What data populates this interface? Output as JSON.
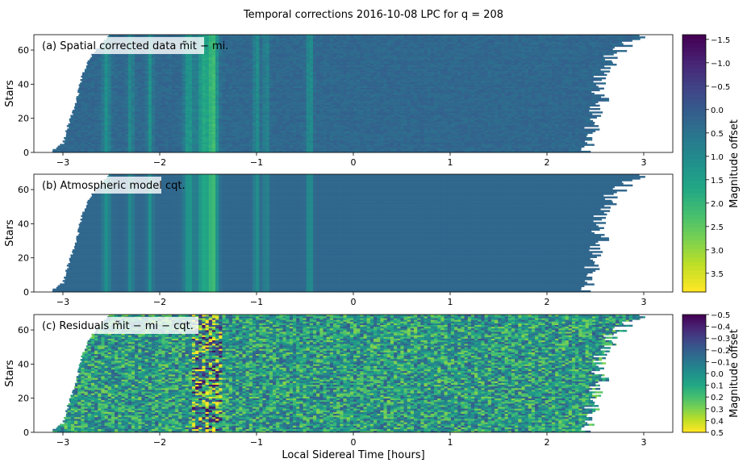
{
  "chart_data": {
    "type": "heatmap",
    "title": "Temporal corrections 2016-10-08 LPC for q = 208",
    "xlabel": "Local Sidereal Time [hours]",
    "xlim": [
      -3.3,
      3.3
    ],
    "xticks": [
      -3,
      -2,
      -1,
      0,
      1,
      2,
      3
    ],
    "xtick_labels": [
      "−3",
      "−2",
      "−1",
      "0",
      "1",
      "2",
      "3"
    ],
    "stars_count": 69,
    "panels": [
      {
        "label": "(a) Spatial corrected data m̃it − mi.",
        "ylabel": "Stars",
        "ylim": [
          0,
          69
        ],
        "yticks": [
          0,
          20,
          40,
          60
        ],
        "colorbar": "main",
        "field": "spatial"
      },
      {
        "label": "(b) Atmospheric model cqt.",
        "ylabel": "Stars",
        "ylim": [
          0,
          69
        ],
        "yticks": [
          0,
          20,
          40,
          60
        ],
        "colorbar": "main",
        "field": "model"
      },
      {
        "label": "(c) Residuals m̃it − mi − cqt.",
        "ylabel": "Stars",
        "ylim": [
          0,
          69
        ],
        "yticks": [
          0,
          20,
          40,
          60
        ],
        "colorbar": "resid",
        "field": "residual"
      }
    ],
    "colorbars": {
      "main": {
        "label": "Magnitude offset",
        "range": [
          -1.6,
          3.9
        ],
        "reversed": true,
        "ticks": [
          -1.5,
          -1.0,
          -0.5,
          0.0,
          0.5,
          1.0,
          1.5,
          2.0,
          2.5,
          3.0,
          3.5
        ],
        "tick_labels": [
          "−1.5",
          "−1.0",
          "−0.5",
          "0.0",
          "0.5",
          "1.0",
          "1.5",
          "2.0",
          "2.5",
          "3.0",
          "3.5"
        ]
      },
      "resid": {
        "label": "Magnitude offset",
        "range": [
          -0.5,
          0.5
        ],
        "reversed": true,
        "ticks": [
          -0.5,
          -0.4,
          -0.3,
          -0.2,
          -0.1,
          0.0,
          0.1,
          0.2,
          0.3,
          0.4,
          0.5
        ],
        "tick_labels": [
          "−0.5",
          "−0.4",
          "−0.3",
          "−0.2",
          "−0.1",
          "0.0",
          "0.1",
          "0.2",
          "0.3",
          "0.4",
          "0.5"
        ]
      }
    },
    "coverage": {
      "start_hours": [
        [
          0,
          -3.12
        ],
        [
          5,
          -3.0
        ],
        [
          10,
          -2.98
        ],
        [
          18,
          -2.93
        ],
        [
          30,
          -2.86
        ],
        [
          45,
          -2.8
        ],
        [
          55,
          -2.72
        ],
        [
          62,
          -2.62
        ],
        [
          66,
          -2.55
        ],
        [
          69,
          -2.5
        ]
      ],
      "end_hours_approx": [
        [
          0,
          2.35
        ],
        [
          10,
          2.45
        ],
        [
          30,
          2.55
        ],
        [
          50,
          2.6
        ],
        [
          60,
          2.75
        ],
        [
          66,
          2.9
        ],
        [
          69,
          3.0
        ]
      ]
    },
    "atmospheric_bands": [
      {
        "center_hours": -1.45,
        "width_hours": 0.05,
        "offset_mag": 1.9
      },
      {
        "center_hours": -1.55,
        "width_hours": 0.06,
        "offset_mag": 1.4
      },
      {
        "center_hours": -1.7,
        "width_hours": 0.05,
        "offset_mag": 1.1
      },
      {
        "center_hours": -2.3,
        "width_hours": 0.03,
        "offset_mag": 0.8
      },
      {
        "center_hours": -2.1,
        "width_hours": 0.03,
        "offset_mag": 0.9
      },
      {
        "center_hours": -2.55,
        "width_hours": 0.04,
        "offset_mag": 0.9
      },
      {
        "center_hours": -1.0,
        "width_hours": 0.03,
        "offset_mag": 0.9
      },
      {
        "center_hours": -0.9,
        "width_hours": 0.03,
        "offset_mag": 0.7
      },
      {
        "center_hours": -0.45,
        "width_hours": 0.03,
        "offset_mag": 1.0
      }
    ],
    "baseline_offset_mag": 0.25
  }
}
